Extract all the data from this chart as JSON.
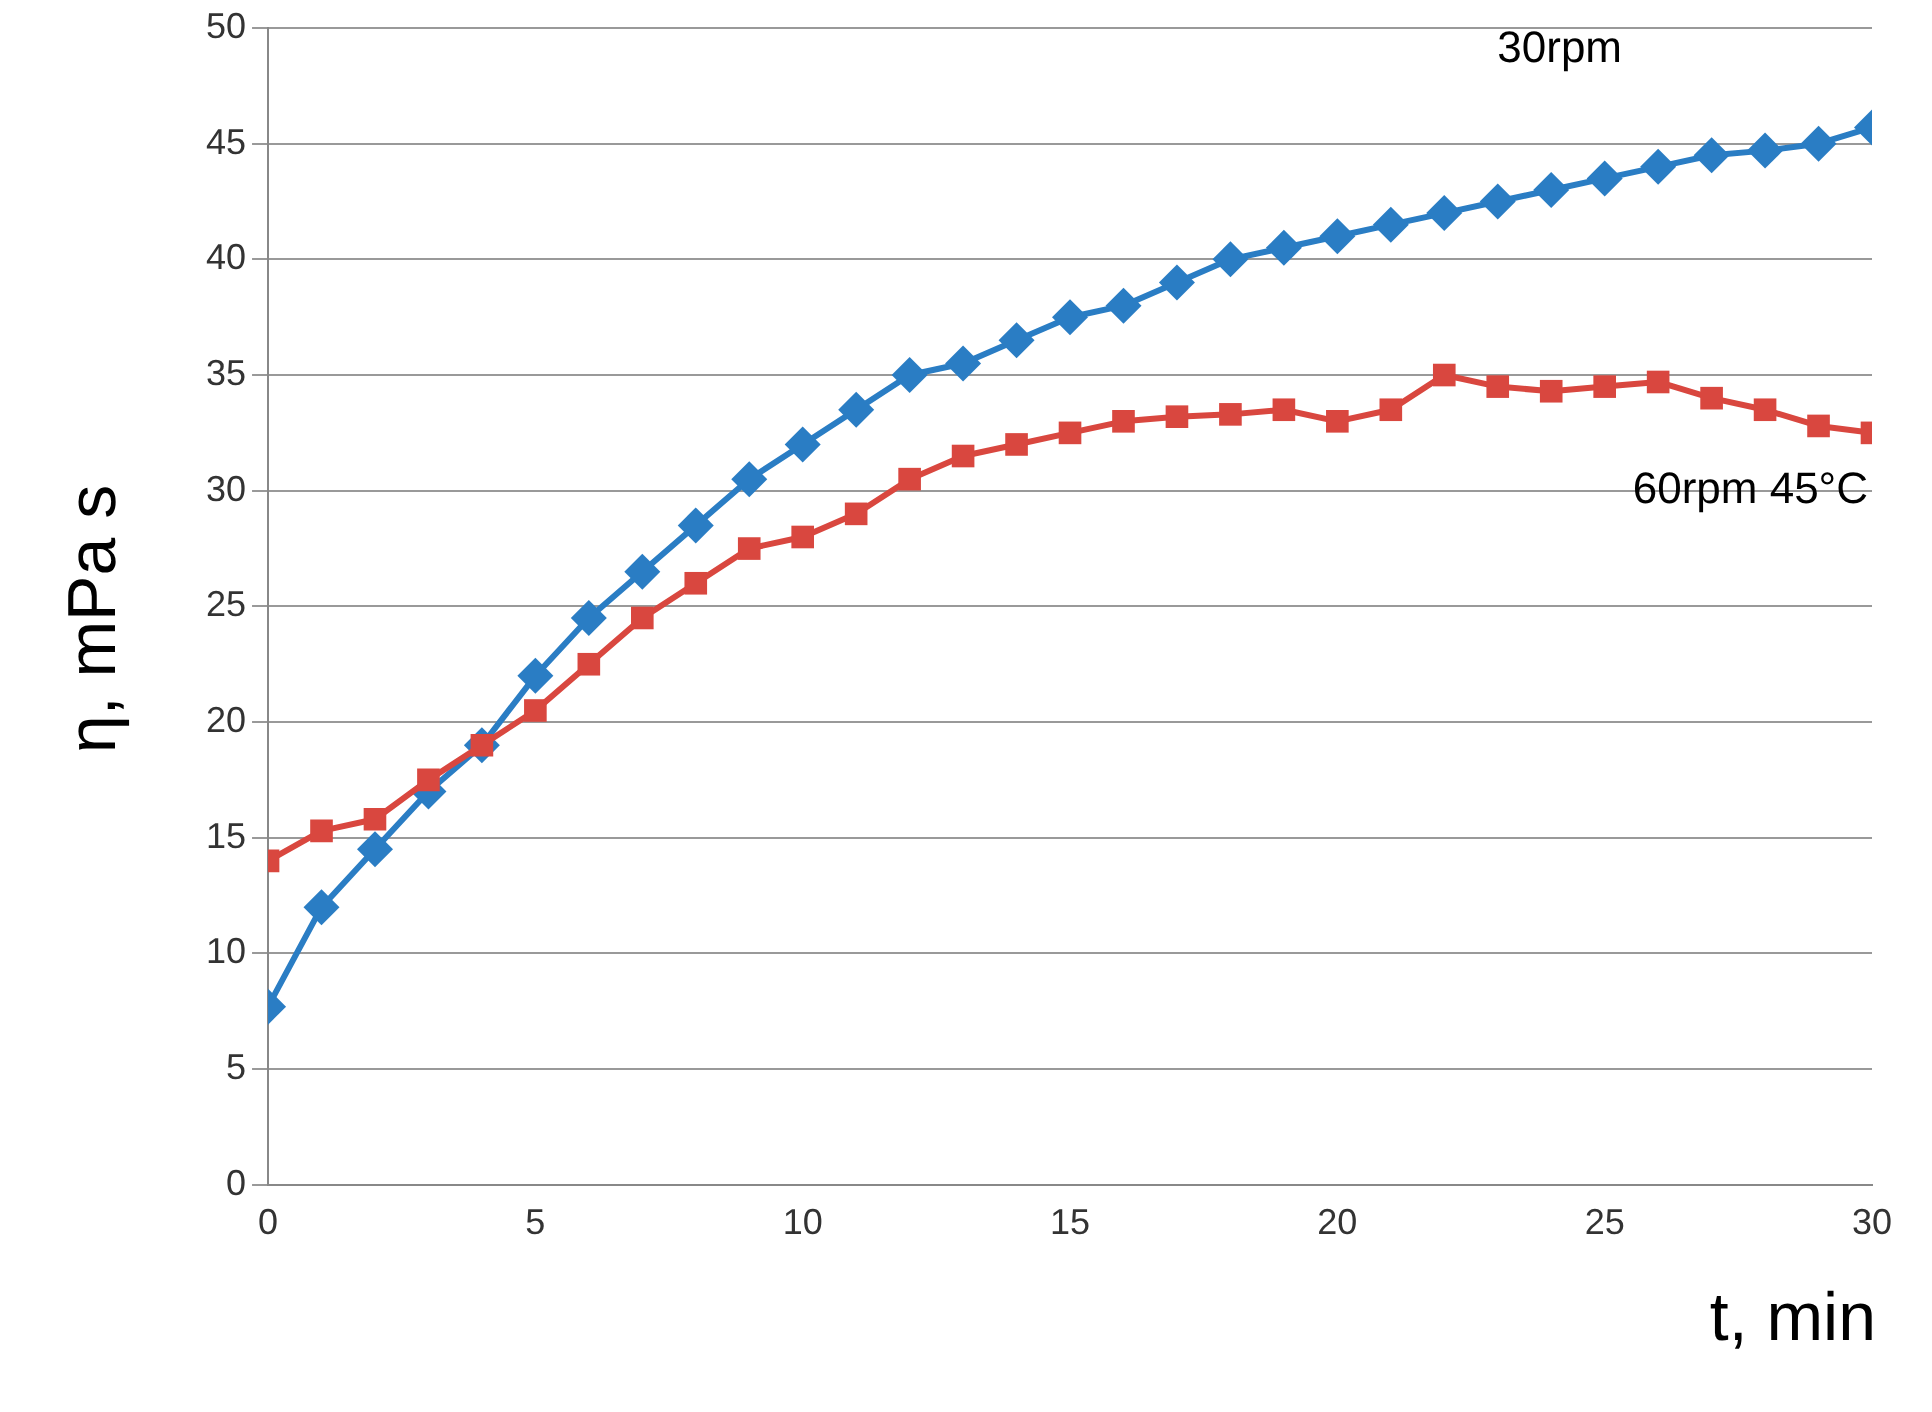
{
  "chart_data": {
    "type": "line",
    "xlabel": "t, min",
    "ylabel": "η, mPa s",
    "x": [
      0,
      1,
      2,
      3,
      4,
      5,
      6,
      7,
      8,
      9,
      10,
      11,
      12,
      13,
      14,
      15,
      16,
      17,
      18,
      19,
      20,
      21,
      22,
      23,
      24,
      25,
      26,
      27,
      28,
      29,
      30
    ],
    "series": [
      {
        "name": "30rpm",
        "color": "#2a7dc4",
        "marker": "diamond",
        "values": [
          7.7,
          12,
          14.5,
          17,
          19,
          22,
          24.5,
          26.5,
          28.5,
          30.5,
          32,
          33.5,
          35,
          35.5,
          36.5,
          37.5,
          38,
          39,
          40,
          40.5,
          41,
          41.5,
          42,
          42.5,
          43,
          43.5,
          44,
          44.5,
          44.7,
          45,
          45.7
        ]
      },
      {
        "name": "60rpm 45°C",
        "color": "#d9473f",
        "marker": "square",
        "values": [
          14,
          15.3,
          15.8,
          17.5,
          19,
          20.5,
          22.5,
          24.5,
          26,
          27.5,
          28,
          29,
          30.5,
          31.5,
          32,
          32.5,
          33,
          33.2,
          33.3,
          33.5,
          33,
          33.5,
          35,
          34.5,
          34.3,
          34.5,
          34.7,
          34,
          33.5,
          32.8,
          32.5
        ]
      }
    ],
    "xlim": [
      0,
      30
    ],
    "xticks": [
      0,
      5,
      10,
      15,
      20,
      25,
      30
    ],
    "ylim": [
      0,
      50
    ],
    "yticks": [
      0,
      5,
      10,
      15,
      20,
      25,
      30,
      35,
      40,
      45,
      50
    ],
    "grid": "y",
    "legend": false
  }
}
